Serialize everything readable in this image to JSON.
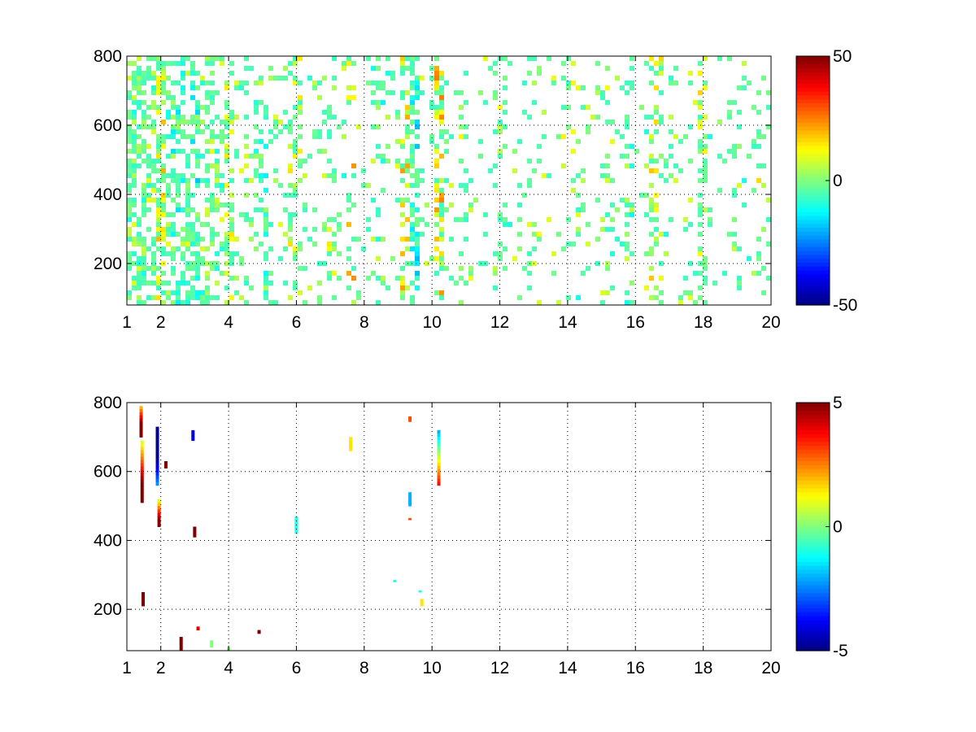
{
  "chart_data": [
    {
      "type": "heatmap",
      "title": "",
      "xlabel": "",
      "ylabel": "",
      "xlim": [
        1,
        20
      ],
      "ylim": [
        80,
        800
      ],
      "x_ticks": [
        1,
        2,
        4,
        6,
        8,
        10,
        12,
        14,
        16,
        18,
        20
      ],
      "y_ticks": [
        200,
        400,
        600,
        800
      ],
      "grid": true,
      "colormap": "jet",
      "clim": [
        -50,
        50
      ],
      "colorbar_ticks": [
        -50,
        0,
        50
      ],
      "bands": [
        {
          "x": 1.5,
          "density": 0.55,
          "mean": 0
        },
        {
          "x": 2.0,
          "density": 0.6,
          "mean": 10
        },
        {
          "x": 2.5,
          "density": 0.5,
          "mean": -5
        },
        {
          "x": 3.0,
          "density": 0.55,
          "mean": -8
        },
        {
          "x": 3.5,
          "density": 0.45,
          "mean": 0
        },
        {
          "x": 4.0,
          "density": 0.45,
          "mean": 5
        },
        {
          "x": 5.0,
          "density": 0.3,
          "mean": -3
        },
        {
          "x": 6.0,
          "density": 0.35,
          "mean": 5
        },
        {
          "x": 7.0,
          "density": 0.25,
          "mean": 5
        },
        {
          "x": 7.6,
          "density": 0.2,
          "mean": 14
        },
        {
          "x": 8.5,
          "density": 0.2,
          "mean": -3
        },
        {
          "x": 9.3,
          "density": 0.4,
          "mean": 12
        },
        {
          "x": 9.5,
          "density": 0.45,
          "mean": -10
        },
        {
          "x": 10.2,
          "density": 0.6,
          "mean": 16
        },
        {
          "x": 11.0,
          "density": 0.2,
          "mean": 3
        },
        {
          "x": 12.0,
          "density": 0.2,
          "mean": 3
        },
        {
          "x": 13.0,
          "density": 0.2,
          "mean": 3
        },
        {
          "x": 14.0,
          "density": 0.2,
          "mean": 3
        },
        {
          "x": 15.0,
          "density": 0.2,
          "mean": 3
        },
        {
          "x": 15.8,
          "density": 0.3,
          "mean": -3
        },
        {
          "x": 16.6,
          "density": 0.35,
          "mean": 8
        },
        {
          "x": 18.0,
          "density": 0.4,
          "mean": 6
        },
        {
          "x": 19.0,
          "density": 0.2,
          "mean": 3
        },
        {
          "x": 19.8,
          "density": 0.2,
          "mean": 5
        }
      ]
    },
    {
      "type": "heatmap",
      "title": "",
      "xlabel": "",
      "ylabel": "",
      "xlim": [
        1,
        20
      ],
      "ylim": [
        80,
        800
      ],
      "x_ticks": [
        1,
        2,
        4,
        6,
        8,
        10,
        12,
        14,
        16,
        18,
        20
      ],
      "y_ticks": [
        200,
        400,
        600,
        800
      ],
      "grid": true,
      "colormap": "jet",
      "clim": [
        -5,
        5
      ],
      "colorbar_ticks": [
        -5,
        0,
        5
      ],
      "cells": [
        {
          "x": 1.42,
          "y0": 700,
          "y1": 790,
          "v": 5
        },
        {
          "x": 1.45,
          "y0": 510,
          "y1": 690,
          "v": 4
        },
        {
          "x": 1.48,
          "y0": 210,
          "y1": 250,
          "v": 5
        },
        {
          "x": 1.9,
          "y0": 560,
          "y1": 730,
          "v": -5
        },
        {
          "x": 1.95,
          "y0": 440,
          "y1": 520,
          "v": 4
        },
        {
          "x": 2.15,
          "y0": 610,
          "y1": 630,
          "v": 5
        },
        {
          "x": 2.6,
          "y0": 80,
          "y1": 120,
          "v": 5
        },
        {
          "x": 2.95,
          "y0": 690,
          "y1": 720,
          "v": -4
        },
        {
          "x": 3.0,
          "y0": 410,
          "y1": 440,
          "v": 5
        },
        {
          "x": 3.1,
          "y0": 140,
          "y1": 150,
          "v": 4
        },
        {
          "x": 3.5,
          "y0": 90,
          "y1": 110,
          "v": 0
        },
        {
          "x": 4.0,
          "y0": 80,
          "y1": 90,
          "v": 0
        },
        {
          "x": 4.9,
          "y0": 130,
          "y1": 140,
          "v": 5
        },
        {
          "x": 6.0,
          "y0": 420,
          "y1": 470,
          "v": -1
        },
        {
          "x": 7.6,
          "y0": 660,
          "y1": 700,
          "v": 1.5
        },
        {
          "x": 8.9,
          "y0": 280,
          "y1": 285,
          "v": -1
        },
        {
          "x": 9.35,
          "y0": 745,
          "y1": 760,
          "v": 3
        },
        {
          "x": 9.35,
          "y0": 500,
          "y1": 540,
          "v": -2
        },
        {
          "x": 9.35,
          "y0": 460,
          "y1": 465,
          "v": 3
        },
        {
          "x": 9.7,
          "y0": 210,
          "y1": 230,
          "v": 1.5
        },
        {
          "x": 9.65,
          "y0": 250,
          "y1": 255,
          "v": -1
        },
        {
          "x": 10.2,
          "y0": 560,
          "y1": 720,
          "v": 1
        }
      ]
    }
  ]
}
